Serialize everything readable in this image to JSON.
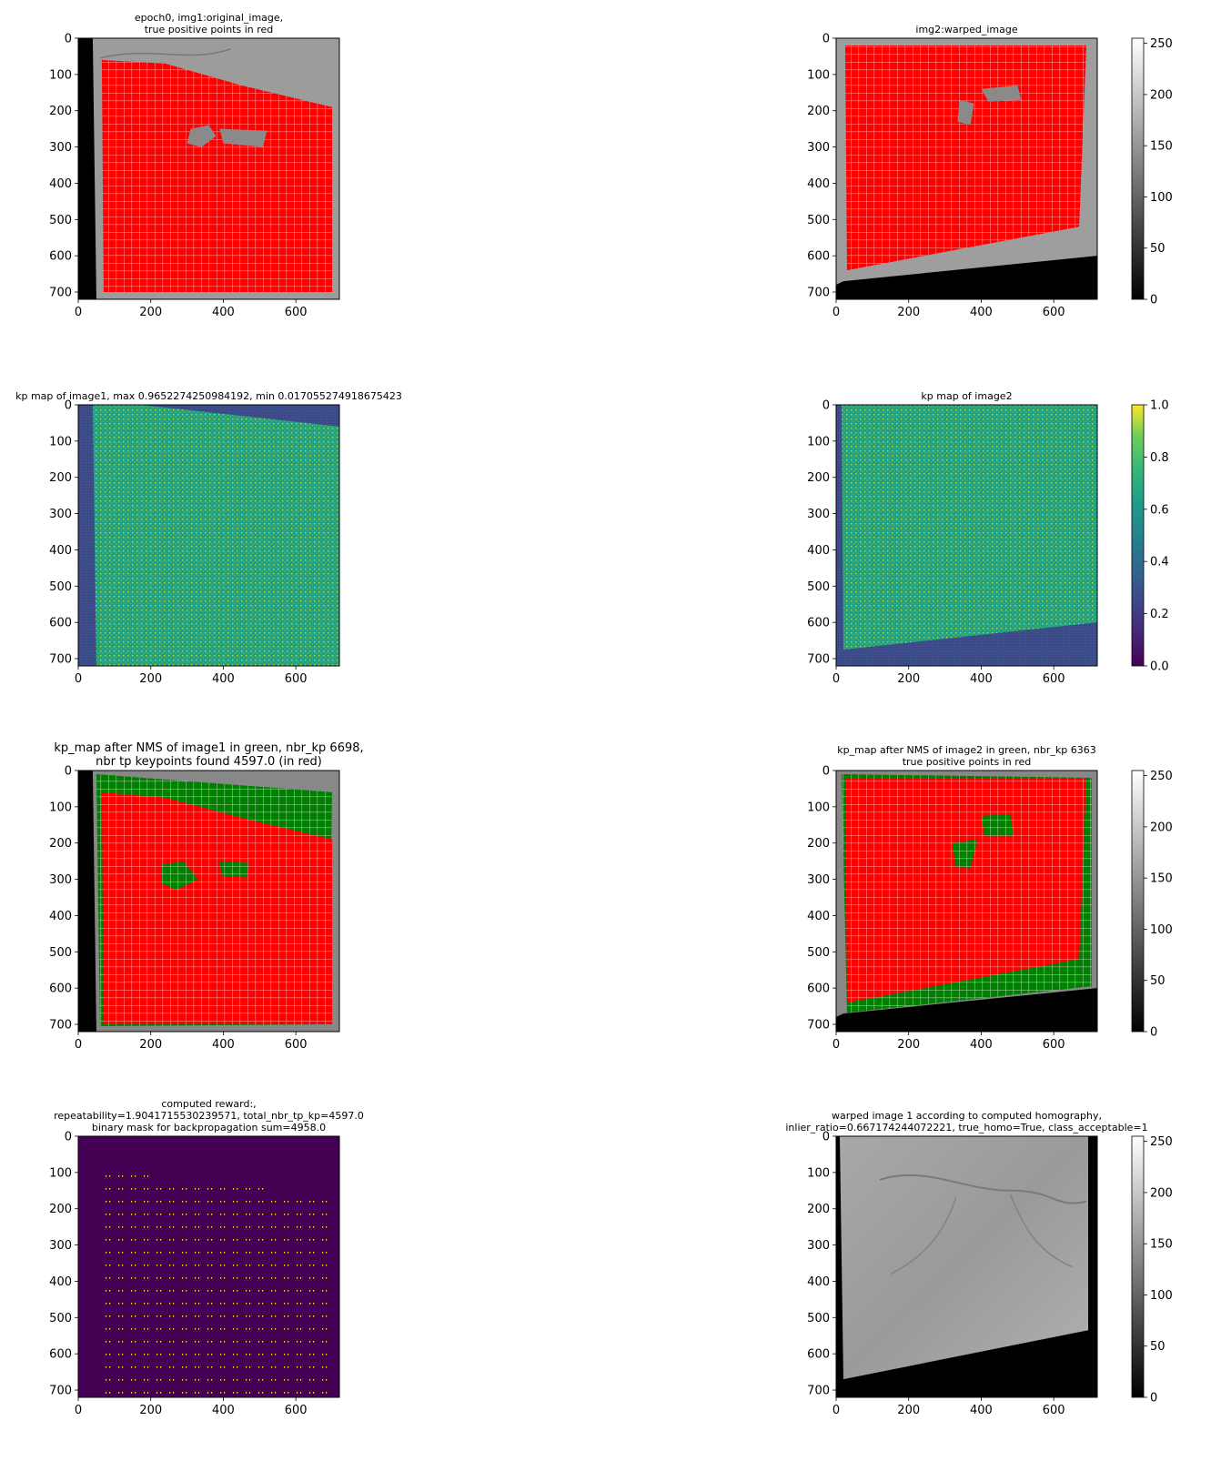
{
  "figure": {
    "panels": [
      {
        "id": "img1-original",
        "title_lines": [
          "epoch0, img1:original_image,",
          "true positive points in red"
        ],
        "title_size": "small",
        "render": "gray_red",
        "colorbar": null
      },
      {
        "id": "img2-warped",
        "title_lines": [
          "img2:warped_image"
        ],
        "title_size": "small",
        "render": "gray_red_warped",
        "colorbar": {
          "ticks": [
            "0",
            "50",
            "100",
            "150",
            "200",
            "250"
          ],
          "values": [
            0,
            50,
            100,
            150,
            200,
            250
          ],
          "range": [
            0,
            255
          ],
          "cmap": "gray"
        }
      },
      {
        "id": "kp-map-1",
        "title_lines": [
          "kp map of image1, max 0.9652274250984192, min 0.017055274918675423"
        ],
        "title_size": "small",
        "render": "kpmap1",
        "colorbar": null
      },
      {
        "id": "kp-map-2",
        "title_lines": [
          "kp map of image2"
        ],
        "title_size": "small",
        "render": "kpmap2",
        "colorbar": {
          "ticks": [
            "0.0",
            "0.2",
            "0.4",
            "0.6",
            "0.8",
            "1.0"
          ],
          "values": [
            0,
            0.2,
            0.4,
            0.6,
            0.8,
            1.0
          ],
          "range": [
            0,
            1
          ],
          "cmap": "viridis"
        }
      },
      {
        "id": "nms-1",
        "title_lines": [
          "kp_map after NMS of image1 in green, nbr_kp 6698,",
          "nbr tp keypoints found 4597.0 (in red)"
        ],
        "title_size": "large",
        "render": "nms1",
        "colorbar": null
      },
      {
        "id": "nms-2",
        "title_lines": [
          "kp_map after NMS of image2 in green, nbr_kp 6363",
          "true positive points in red"
        ],
        "title_size": "small",
        "render": "nms2",
        "colorbar": {
          "ticks": [
            "0",
            "50",
            "100",
            "150",
            "200",
            "250"
          ],
          "values": [
            0,
            50,
            100,
            150,
            200,
            250
          ],
          "range": [
            0,
            255
          ],
          "cmap": "gray"
        }
      },
      {
        "id": "reward-mask",
        "title_lines": [
          "computed reward:,",
          "repeatability=1.9041715530239571, total_nbr_tp_kp=4597.0",
          "binary mask for backpropagation sum=4958.0"
        ],
        "title_size": "small",
        "render": "mask",
        "colorbar": null
      },
      {
        "id": "warped-homography",
        "title_lines": [
          "warped image 1 according to computed homography,",
          "inlier_ratio=0.667174244072221, true_homo=True, class_acceptable=1"
        ],
        "title_size": "small",
        "render": "homography",
        "colorbar": {
          "ticks": [
            "0",
            "50",
            "100",
            "150",
            "200",
            "250"
          ],
          "values": [
            0,
            50,
            100,
            150,
            200,
            250
          ],
          "range": [
            0,
            255
          ],
          "cmap": "gray"
        }
      }
    ]
  },
  "chart_data": [
    {
      "type": "heatmap",
      "title": "epoch0, img1:original_image,\ntrue positive points in red",
      "xlim": [
        0,
        720
      ],
      "ylim": [
        720,
        0
      ],
      "x_ticks": [
        0,
        200,
        400,
        600
      ],
      "y_ticks": [
        0,
        100,
        200,
        300,
        400,
        500,
        600,
        700
      ],
      "x_tick_labels": [
        "0",
        "200",
        "400",
        "600"
      ],
      "y_tick_labels": [
        "0",
        "100",
        "200",
        "300",
        "400",
        "500",
        "600",
        "700"
      ],
      "overlay": "red true positive points"
    },
    {
      "type": "heatmap",
      "title": "img2:warped_image",
      "xlim": [
        0,
        720
      ],
      "ylim": [
        720,
        0
      ],
      "x_ticks": [
        0,
        200,
        400,
        600
      ],
      "y_ticks": [
        0,
        100,
        200,
        300,
        400,
        500,
        600,
        700
      ],
      "x_tick_labels": [
        "0",
        "200",
        "400",
        "600"
      ],
      "y_tick_labels": [
        "0",
        "100",
        "200",
        "300",
        "400",
        "500",
        "600",
        "700"
      ],
      "colorbar_range": [
        0,
        255
      ],
      "overlay": "red true positive points"
    },
    {
      "type": "heatmap",
      "title": "kp map of image1, max 0.9652274250984192, min 0.017055274918675423",
      "xlim": [
        0,
        720
      ],
      "ylim": [
        720,
        0
      ],
      "x_ticks": [
        0,
        200,
        400,
        600
      ],
      "y_ticks": [
        0,
        100,
        200,
        300,
        400,
        500,
        600,
        700
      ],
      "x_tick_labels": [
        "0",
        "200",
        "400",
        "600"
      ],
      "y_tick_labels": [
        "0",
        "100",
        "200",
        "300",
        "400",
        "500",
        "600",
        "700"
      ],
      "max": 0.9652274250984192,
      "min": 0.017055274918675423
    },
    {
      "type": "heatmap",
      "title": "kp map of image2",
      "xlim": [
        0,
        720
      ],
      "ylim": [
        720,
        0
      ],
      "x_ticks": [
        0,
        200,
        400,
        600
      ],
      "y_ticks": [
        0,
        100,
        200,
        300,
        400,
        500,
        600,
        700
      ],
      "x_tick_labels": [
        "0",
        "200",
        "400",
        "600"
      ],
      "y_tick_labels": [
        "0",
        "100",
        "200",
        "300",
        "400",
        "500",
        "600",
        "700"
      ],
      "colorbar_range": [
        0,
        1
      ]
    },
    {
      "type": "heatmap",
      "title": "kp_map after NMS of image1 in green, nbr_kp 6698,\nnbr tp keypoints found 4597.0 (in red)",
      "xlim": [
        0,
        720
      ],
      "ylim": [
        720,
        0
      ],
      "x_ticks": [
        0,
        200,
        400,
        600
      ],
      "y_ticks": [
        0,
        100,
        200,
        300,
        400,
        500,
        600,
        700
      ],
      "x_tick_labels": [
        "0",
        "200",
        "400",
        "600"
      ],
      "y_tick_labels": [
        "0",
        "100",
        "200",
        "300",
        "400",
        "500",
        "600",
        "700"
      ],
      "nbr_kp": 6698,
      "nbr_tp": 4597.0
    },
    {
      "type": "heatmap",
      "title": "kp_map after NMS of image2 in green, nbr_kp 6363\ntrue positive points in red",
      "xlim": [
        0,
        720
      ],
      "ylim": [
        720,
        0
      ],
      "x_ticks": [
        0,
        200,
        400,
        600
      ],
      "y_ticks": [
        0,
        100,
        200,
        300,
        400,
        500,
        600,
        700
      ],
      "x_tick_labels": [
        "0",
        "200",
        "400",
        "600"
      ],
      "y_tick_labels": [
        "0",
        "100",
        "200",
        "300",
        "400",
        "500",
        "600",
        "700"
      ],
      "nbr_kp": 6363,
      "colorbar_range": [
        0,
        255
      ]
    },
    {
      "type": "heatmap",
      "title": "computed reward:,\nrepeatability=1.9041715530239571, total_nbr_tp_kp=4597.0\nbinary mask for backpropagation sum=4958.0",
      "xlim": [
        0,
        720
      ],
      "ylim": [
        720,
        0
      ],
      "x_ticks": [
        0,
        200,
        400,
        600
      ],
      "y_ticks": [
        0,
        100,
        200,
        300,
        400,
        500,
        600,
        700
      ],
      "x_tick_labels": [
        "0",
        "200",
        "400",
        "600"
      ],
      "y_tick_labels": [
        "0",
        "100",
        "200",
        "300",
        "400",
        "500",
        "600",
        "700"
      ],
      "repeatability": 1.9041715530239571,
      "total_nbr_tp_kp": 4597.0,
      "mask_sum": 4958.0
    },
    {
      "type": "heatmap",
      "title": "warped image 1 according to computed homography,\ninlier_ratio=0.667174244072221, true_homo=True, class_acceptable=1",
      "xlim": [
        0,
        720
      ],
      "ylim": [
        720,
        0
      ],
      "x_ticks": [
        0,
        200,
        400,
        600
      ],
      "y_ticks": [
        0,
        100,
        200,
        300,
        400,
        500,
        600,
        700
      ],
      "x_tick_labels": [
        "0",
        "200",
        "400",
        "600"
      ],
      "y_tick_labels": [
        "0",
        "100",
        "200",
        "300",
        "400",
        "500",
        "600",
        "700"
      ],
      "inlier_ratio": 0.667174244072221,
      "true_homo": "True",
      "class_acceptable": 1,
      "colorbar_range": [
        0,
        255
      ]
    }
  ]
}
